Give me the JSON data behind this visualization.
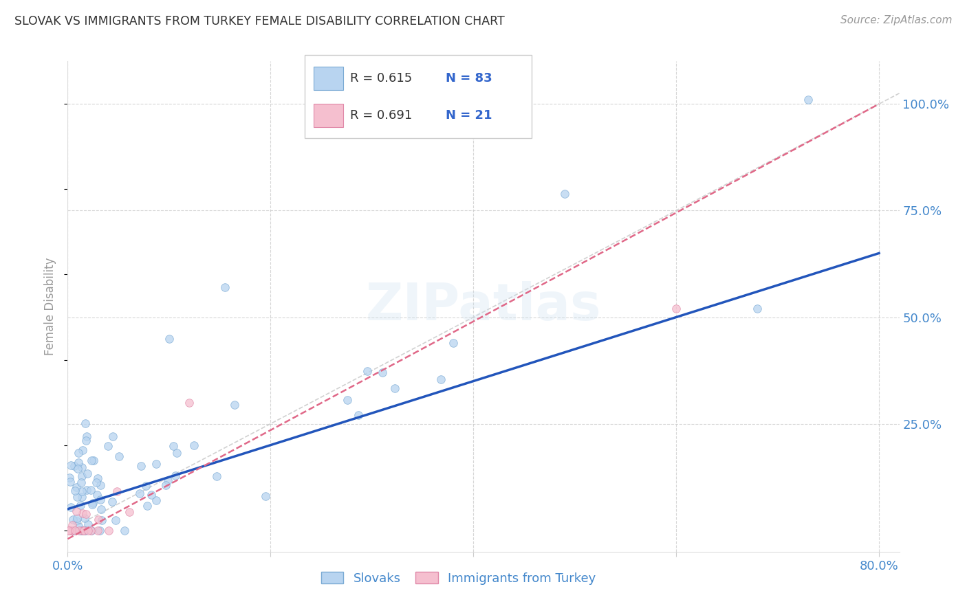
{
  "title": "SLOVAK VS IMMIGRANTS FROM TURKEY FEMALE DISABILITY CORRELATION CHART",
  "source": "Source: ZipAtlas.com",
  "ylabel": "Female Disability",
  "xlim": [
    0.0,
    0.82
  ],
  "ylim": [
    -0.05,
    1.1
  ],
  "x_ticks": [
    0.0,
    0.2,
    0.4,
    0.6,
    0.8
  ],
  "x_tick_labels": [
    "0.0%",
    "",
    "",
    "",
    "80.0%"
  ],
  "y_ticks_right": [
    0.25,
    0.5,
    0.75,
    1.0
  ],
  "y_tick_labels_right": [
    "25.0%",
    "50.0%",
    "75.0%",
    "100.0%"
  ],
  "slovaks_scatter": {
    "color": "#b8d4f0",
    "edgecolor": "#7aaad4",
    "alpha": 0.75,
    "size": 70
  },
  "turkey_scatter": {
    "color": "#f5bfcf",
    "edgecolor": "#e088a8",
    "alpha": 0.75,
    "size": 70
  },
  "regression_slovak": {
    "color": "#2255bb",
    "linewidth": 2.5,
    "linestyle": "-"
  },
  "regression_turkey": {
    "color": "#e06888",
    "linewidth": 1.8,
    "linestyle": "--"
  },
  "diag_line_color": "#cccccc",
  "grid_color": "#cccccc",
  "grid_style": "--",
  "grid_alpha": 0.8,
  "background_color": "#ffffff",
  "title_color": "#333333",
  "axis_label_color": "#999999",
  "tick_label_color": "#4488cc",
  "watermark": "ZIPatlas",
  "R_slovak": 0.615,
  "N_slovak": 83,
  "R_turkey": 0.691,
  "N_turkey": 21,
  "legend_label_color": "#333333",
  "legend_value_color": "#3366cc"
}
